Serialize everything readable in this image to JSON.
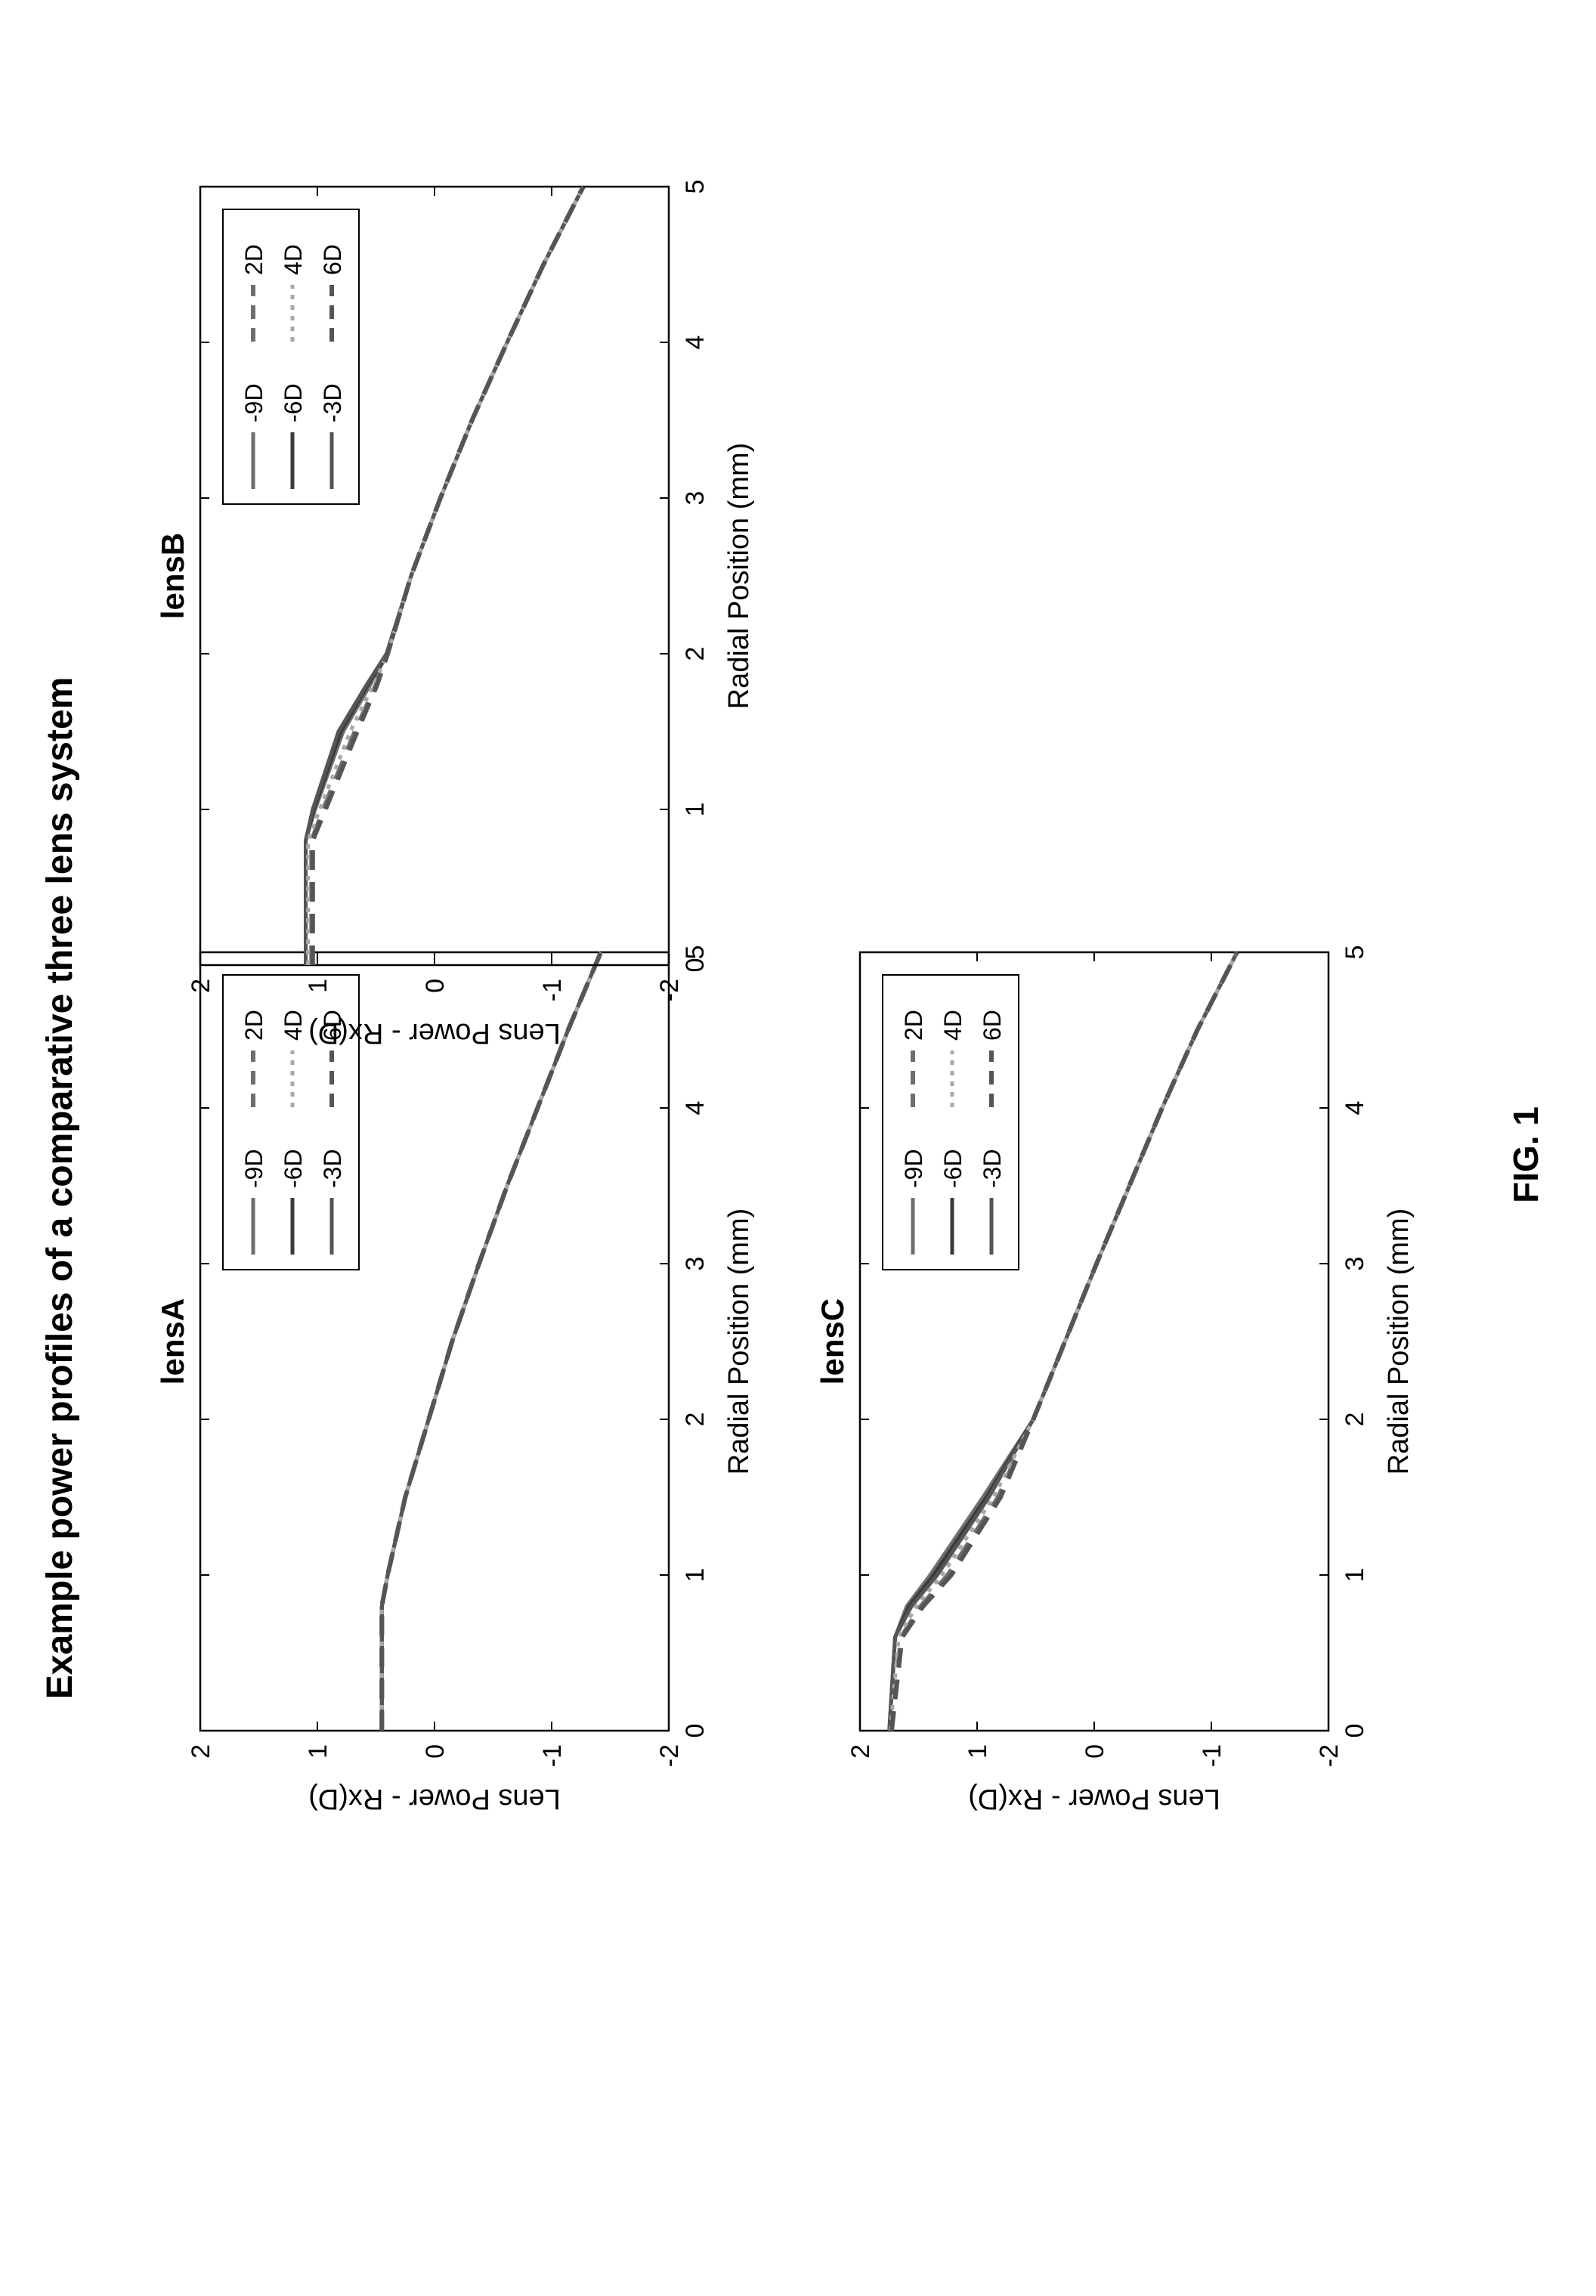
{
  "page": {
    "title": "Example power profiles of a comparative three lens system",
    "figure_label": "FIG. 1"
  },
  "colors": {
    "ink": "#000000",
    "series_dark": "#3a3a3a",
    "series_mid": "#6e6e6e",
    "series_light": "#a8a8a8"
  },
  "chart_data": [
    {
      "type": "line",
      "title": "lensA",
      "xlabel": "Radial Position (mm)",
      "ylabel": "Lens Power - Rx(D)",
      "xlim": [
        0,
        5
      ],
      "ylim": [
        -2,
        2
      ],
      "xticks": [
        "0",
        "1",
        "2",
        "3",
        "4",
        "5"
      ],
      "yticks": [
        "-2",
        "-1",
        "0",
        "1",
        "2"
      ],
      "legend_position": "top-right",
      "grid": false,
      "series": [
        {
          "name": "-9D",
          "style": "solid",
          "color": "#6e6e6e",
          "x": [
            0,
            0.8,
            1,
            1.5,
            2,
            2.5,
            3,
            3.5,
            4,
            4.5,
            5
          ],
          "y": [
            0.45,
            0.45,
            0.4,
            0.25,
            0.05,
            -0.15,
            -0.38,
            -0.62,
            -0.88,
            -1.14,
            -1.42
          ]
        },
        {
          "name": "-6D",
          "style": "solid",
          "color": "#3a3a3a",
          "x": [
            0,
            0.8,
            1,
            1.5,
            2,
            2.5,
            3,
            3.5,
            4,
            4.5,
            5
          ],
          "y": [
            0.45,
            0.45,
            0.4,
            0.25,
            0.05,
            -0.15,
            -0.38,
            -0.62,
            -0.88,
            -1.14,
            -1.42
          ]
        },
        {
          "name": "-3D",
          "style": "solid",
          "color": "#555555",
          "x": [
            0,
            0.8,
            1,
            1.5,
            2,
            2.5,
            3,
            3.5,
            4,
            4.5,
            5
          ],
          "y": [
            0.45,
            0.45,
            0.4,
            0.25,
            0.05,
            -0.15,
            -0.38,
            -0.62,
            -0.88,
            -1.14,
            -1.42
          ]
        },
        {
          "name": "2D",
          "style": "dashed",
          "color": "#6e6e6e",
          "x": [
            0,
            0.8,
            1,
            1.5,
            2,
            2.5,
            3,
            3.5,
            4,
            4.5,
            5
          ],
          "y": [
            0.45,
            0.45,
            0.4,
            0.25,
            0.05,
            -0.15,
            -0.38,
            -0.62,
            -0.88,
            -1.14,
            -1.42
          ]
        },
        {
          "name": "4D",
          "style": "dotted",
          "color": "#a8a8a8",
          "x": [
            0,
            0.8,
            1,
            1.5,
            2,
            2.5,
            3,
            3.5,
            4,
            4.5,
            5
          ],
          "y": [
            0.45,
            0.45,
            0.4,
            0.25,
            0.05,
            -0.15,
            -0.38,
            -0.62,
            -0.88,
            -1.14,
            -1.42
          ]
        },
        {
          "name": "6D",
          "style": "dashed",
          "color": "#555555",
          "x": [
            0,
            0.8,
            1,
            1.5,
            2,
            2.5,
            3,
            3.5,
            4,
            4.5,
            5
          ],
          "y": [
            0.45,
            0.45,
            0.4,
            0.25,
            0.05,
            -0.15,
            -0.38,
            -0.62,
            -0.88,
            -1.14,
            -1.42
          ]
        }
      ]
    },
    {
      "type": "line",
      "title": "lensB",
      "xlabel": "Radial Position (mm)",
      "ylabel": "Lens Power - Rx(D)",
      "xlim": [
        0,
        5
      ],
      "ylim": [
        -2,
        2
      ],
      "xticks": [
        "0",
        "1",
        "2",
        "3",
        "4",
        "5"
      ],
      "yticks": [
        "-2",
        "-1",
        "0",
        "1",
        "2"
      ],
      "legend_position": "top-right",
      "grid": false,
      "series": [
        {
          "name": "-9D",
          "style": "solid",
          "color": "#6e6e6e",
          "x": [
            0,
            0.8,
            1,
            1.5,
            1.8,
            2,
            2.5,
            3,
            3.5,
            4,
            4.5,
            5
          ],
          "y": [
            1.1,
            1.1,
            1.02,
            0.78,
            0.55,
            0.4,
            0.2,
            -0.05,
            -0.32,
            -0.62,
            -0.93,
            -1.27
          ]
        },
        {
          "name": "-6D",
          "style": "solid",
          "color": "#3a3a3a",
          "x": [
            0,
            0.8,
            1,
            1.5,
            1.8,
            2,
            2.5,
            3,
            3.5,
            4,
            4.5,
            5
          ],
          "y": [
            1.1,
            1.1,
            1.03,
            0.8,
            0.57,
            0.4,
            0.2,
            -0.05,
            -0.32,
            -0.62,
            -0.93,
            -1.27
          ]
        },
        {
          "name": "-3D",
          "style": "solid",
          "color": "#555555",
          "x": [
            0,
            0.8,
            1,
            1.5,
            1.8,
            2,
            2.5,
            3,
            3.5,
            4,
            4.5,
            5
          ],
          "y": [
            1.1,
            1.1,
            1.04,
            0.82,
            0.58,
            0.41,
            0.2,
            -0.05,
            -0.32,
            -0.62,
            -0.93,
            -1.27
          ]
        },
        {
          "name": "2D",
          "style": "dashed",
          "color": "#6e6e6e",
          "x": [
            0,
            0.8,
            1,
            1.5,
            1.8,
            2,
            2.5,
            3,
            3.5,
            4,
            4.5,
            5
          ],
          "y": [
            1.05,
            1.05,
            0.95,
            0.68,
            0.5,
            0.4,
            0.2,
            -0.05,
            -0.32,
            -0.62,
            -0.93,
            -1.27
          ]
        },
        {
          "name": "4D",
          "style": "dotted",
          "color": "#a8a8a8",
          "x": [
            0,
            0.8,
            1,
            1.5,
            1.8,
            2,
            2.5,
            3,
            3.5,
            4,
            4.5,
            5
          ],
          "y": [
            1.08,
            1.08,
            0.98,
            0.72,
            0.52,
            0.4,
            0.2,
            -0.05,
            -0.32,
            -0.62,
            -0.93,
            -1.27
          ]
        },
        {
          "name": "6D",
          "style": "dashed",
          "color": "#555555",
          "x": [
            0,
            0.8,
            1,
            1.5,
            1.8,
            2,
            2.5,
            3,
            3.5,
            4,
            4.5,
            5
          ],
          "y": [
            1.04,
            1.04,
            0.93,
            0.66,
            0.49,
            0.4,
            0.2,
            -0.05,
            -0.32,
            -0.62,
            -0.93,
            -1.27
          ]
        }
      ]
    },
    {
      "type": "line",
      "title": "lensC",
      "xlabel": "Radial Position (mm)",
      "ylabel": "Lens Power - Rx(D)",
      "xlim": [
        0,
        5
      ],
      "ylim": [
        -2,
        2
      ],
      "xticks": [
        "0",
        "1",
        "2",
        "3",
        "4",
        "5"
      ],
      "yticks": [
        "-2",
        "-1",
        "0",
        "1",
        "2"
      ],
      "legend_position": "top-right",
      "grid": false,
      "series": [
        {
          "name": "-9D",
          "style": "solid",
          "color": "#6e6e6e",
          "x": [
            0,
            0.6,
            0.8,
            1,
            1.5,
            2,
            2.5,
            3,
            3.5,
            4,
            4.5,
            5
          ],
          "y": [
            1.75,
            1.7,
            1.6,
            1.4,
            0.95,
            0.52,
            0.25,
            -0.02,
            -0.3,
            -0.58,
            -0.88,
            -1.22
          ]
        },
        {
          "name": "-6D",
          "style": "solid",
          "color": "#3a3a3a",
          "x": [
            0,
            0.6,
            0.8,
            1,
            1.5,
            2,
            2.5,
            3,
            3.5,
            4,
            4.5,
            5
          ],
          "y": [
            1.75,
            1.7,
            1.58,
            1.37,
            0.92,
            0.52,
            0.25,
            -0.02,
            -0.3,
            -0.58,
            -0.88,
            -1.22
          ]
        },
        {
          "name": "-3D",
          "style": "solid",
          "color": "#555555",
          "x": [
            0,
            0.6,
            0.8,
            1,
            1.5,
            2,
            2.5,
            3,
            3.5,
            4,
            4.5,
            5
          ],
          "y": [
            1.75,
            1.7,
            1.56,
            1.34,
            0.9,
            0.52,
            0.25,
            -0.02,
            -0.3,
            -0.58,
            -0.88,
            -1.22
          ]
        },
        {
          "name": "2D",
          "style": "dashed",
          "color": "#6e6e6e",
          "x": [
            0,
            0.6,
            0.8,
            1,
            1.5,
            2,
            2.5,
            3,
            3.5,
            4,
            4.5,
            5
          ],
          "y": [
            1.73,
            1.65,
            1.48,
            1.25,
            0.82,
            0.52,
            0.25,
            -0.02,
            -0.3,
            -0.58,
            -0.88,
            -1.22
          ]
        },
        {
          "name": "4D",
          "style": "dotted",
          "color": "#a8a8a8",
          "x": [
            0,
            0.6,
            0.8,
            1,
            1.5,
            2,
            2.5,
            3,
            3.5,
            4,
            4.5,
            5
          ],
          "y": [
            1.74,
            1.67,
            1.52,
            1.3,
            0.86,
            0.52,
            0.25,
            -0.02,
            -0.3,
            -0.58,
            -0.88,
            -1.22
          ]
        },
        {
          "name": "6D",
          "style": "dashed",
          "color": "#555555",
          "x": [
            0,
            0.6,
            0.8,
            1,
            1.5,
            2,
            2.5,
            3,
            3.5,
            4,
            4.5,
            5
          ],
          "y": [
            1.73,
            1.64,
            1.46,
            1.22,
            0.8,
            0.52,
            0.25,
            -0.02,
            -0.3,
            -0.58,
            -0.88,
            -1.22
          ]
        }
      ]
    }
  ]
}
